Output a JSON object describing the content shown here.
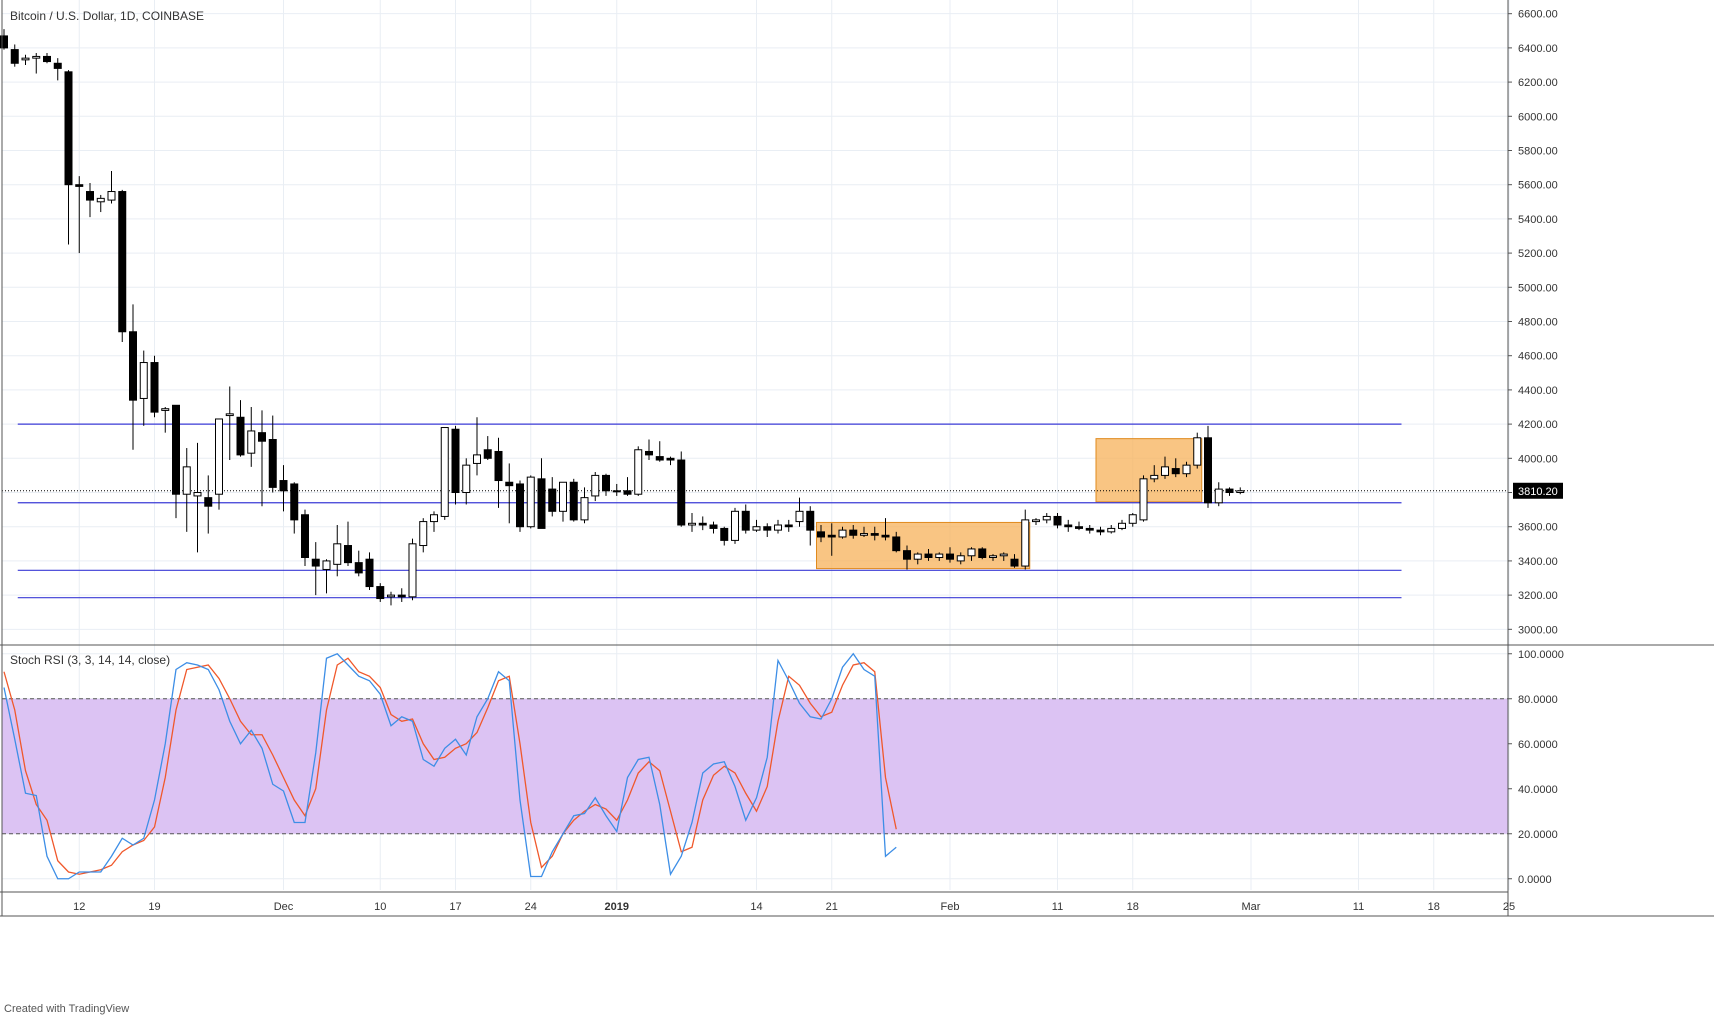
{
  "colors": {
    "grid": "#e9eef4",
    "axis": "#555555",
    "candle_up_fill": "#ffffff",
    "candle_down_fill": "#000000",
    "candle_stroke": "#000000",
    "level_line": "#3b3bd6",
    "range_box_fill": "#f7b15a",
    "range_box_stroke": "#e08a1e",
    "rsi_band": "#dcc3f3",
    "rsi_k": "#3d8ee6",
    "rsi_d": "#f0582b",
    "price_label_bg": "#000000",
    "price_label_text": "#ffffff"
  },
  "chart_data": [
    {
      "type": "candlestick",
      "title": "Bitcoin / U.S. Dollar, 1D, COINBASE",
      "ylim": [
        2920,
        6680
      ],
      "y_ticks": [
        "6600.00",
        "6400.00",
        "6200.00",
        "6000.00",
        "5800.00",
        "5600.00",
        "5400.00",
        "5200.00",
        "5000.00",
        "4800.00",
        "4600.00",
        "4400.00",
        "4200.00",
        "4000.00",
        "3800.00",
        "3600.00",
        "3400.00",
        "3200.00",
        "3000.00"
      ],
      "y_tick_values": [
        6600,
        6400,
        6200,
        6000,
        5800,
        5600,
        5400,
        5200,
        5000,
        4800,
        4600,
        4400,
        4200,
        4000,
        3800,
        3600,
        3400,
        3200,
        3000
      ],
      "x_tick_labels": [
        "12",
        "19",
        "Dec",
        "10",
        "17",
        "24",
        "2019",
        "14",
        "21",
        "Feb",
        "11",
        "18",
        "Mar",
        "11",
        "18",
        "25"
      ],
      "x_tick_days": [
        7,
        14,
        26,
        35,
        42,
        49,
        57,
        70,
        77,
        88,
        98,
        105,
        116,
        126,
        133,
        140
      ],
      "x_tick_bold": [
        false,
        false,
        false,
        false,
        false,
        false,
        true,
        false,
        false,
        false,
        false,
        false,
        false,
        false,
        false,
        false
      ],
      "last_price_label": "3810.20",
      "last_price": 3810.2,
      "horizontal_levels": [
        4200,
        3740,
        3345,
        3185
      ],
      "level_x_range_days": [
        1,
        130
      ],
      "highlight_boxes": [
        {
          "start_day": 76,
          "end_day": 95,
          "low": 3355,
          "high": 3625
        },
        {
          "start_day": 102,
          "end_day": 111,
          "low": 3745,
          "high": 4115
        }
      ],
      "candles": [
        [
          6470,
          6510,
          6390,
          6400
        ],
        [
          6390,
          6420,
          6290,
          6310
        ],
        [
          6330,
          6360,
          6300,
          6340
        ],
        [
          6340,
          6370,
          6250,
          6350
        ],
        [
          6350,
          6370,
          6310,
          6320
        ],
        [
          6310,
          6340,
          6210,
          6280
        ],
        [
          6260,
          6270,
          5250,
          5600
        ],
        [
          5600,
          5650,
          5200,
          5590
        ],
        [
          5560,
          5610,
          5410,
          5510
        ],
        [
          5500,
          5540,
          5440,
          5520
        ],
        [
          5510,
          5680,
          5490,
          5560
        ],
        [
          5560,
          5570,
          4680,
          4740
        ],
        [
          4740,
          4900,
          4050,
          4340
        ],
        [
          4350,
          4630,
          4190,
          4560
        ],
        [
          4560,
          4600,
          4240,
          4270
        ],
        [
          4280,
          4300,
          4150,
          4290
        ],
        [
          4310,
          4310,
          3650,
          3790
        ],
        [
          3790,
          4060,
          3570,
          3950
        ],
        [
          3780,
          4090,
          3450,
          3800
        ],
        [
          3770,
          3900,
          3560,
          3720
        ],
        [
          3790,
          4230,
          3700,
          4230
        ],
        [
          4250,
          4420,
          3990,
          4260
        ],
        [
          4240,
          4340,
          4010,
          4020
        ],
        [
          4030,
          4300,
          3950,
          4160
        ],
        [
          4150,
          4280,
          3720,
          4100
        ],
        [
          4110,
          4250,
          3800,
          3830
        ],
        [
          3870,
          3960,
          3690,
          3810
        ],
        [
          3850,
          3860,
          3560,
          3640
        ],
        [
          3670,
          3700,
          3370,
          3420
        ],
        [
          3410,
          3510,
          3200,
          3370
        ],
        [
          3350,
          3410,
          3210,
          3400
        ],
        [
          3380,
          3610,
          3310,
          3500
        ],
        [
          3490,
          3630,
          3370,
          3390
        ],
        [
          3390,
          3460,
          3310,
          3330
        ],
        [
          3410,
          3450,
          3230,
          3250
        ],
        [
          3250,
          3270,
          3160,
          3180
        ],
        [
          3190,
          3220,
          3140,
          3200
        ],
        [
          3200,
          3240,
          3160,
          3190
        ],
        [
          3190,
          3530,
          3170,
          3500
        ],
        [
          3490,
          3650,
          3450,
          3630
        ],
        [
          3630,
          3690,
          3570,
          3670
        ],
        [
          3660,
          4180,
          3640,
          4180
        ],
        [
          4170,
          4190,
          3730,
          3800
        ],
        [
          3800,
          4000,
          3730,
          3960
        ],
        [
          3970,
          4240,
          3900,
          4020
        ],
        [
          4050,
          4130,
          3990,
          4000
        ],
        [
          4040,
          4120,
          3710,
          3870
        ],
        [
          3860,
          3970,
          3620,
          3840
        ],
        [
          3850,
          3870,
          3570,
          3600
        ],
        [
          3600,
          3900,
          3590,
          3890
        ],
        [
          3880,
          4000,
          3590,
          3590
        ],
        [
          3820,
          3890,
          3660,
          3690
        ],
        [
          3690,
          3860,
          3630,
          3860
        ],
        [
          3860,
          3880,
          3630,
          3640
        ],
        [
          3640,
          3830,
          3620,
          3770
        ],
        [
          3780,
          3920,
          3750,
          3900
        ],
        [
          3900,
          3910,
          3780,
          3810
        ],
        [
          3810,
          3850,
          3780,
          3810
        ],
        [
          3810,
          3890,
          3780,
          3790
        ],
        [
          3790,
          4070,
          3780,
          4050
        ],
        [
          4040,
          4110,
          3990,
          4020
        ],
        [
          4010,
          4100,
          3980,
          3990
        ],
        [
          4000,
          4010,
          3960,
          3990
        ],
        [
          3990,
          4040,
          3600,
          3610
        ],
        [
          3610,
          3680,
          3570,
          3620
        ],
        [
          3620,
          3660,
          3580,
          3610
        ],
        [
          3610,
          3630,
          3560,
          3590
        ],
        [
          3590,
          3600,
          3490,
          3520
        ],
        [
          3520,
          3710,
          3500,
          3690
        ],
        [
          3690,
          3730,
          3560,
          3580
        ],
        [
          3580,
          3640,
          3570,
          3600
        ],
        [
          3600,
          3620,
          3540,
          3580
        ],
        [
          3580,
          3640,
          3560,
          3610
        ],
        [
          3610,
          3640,
          3570,
          3600
        ],
        [
          3630,
          3770,
          3600,
          3690
        ],
        [
          3690,
          3720,
          3490,
          3580
        ],
        [
          3570,
          3610,
          3510,
          3540
        ],
        [
          3550,
          3620,
          3430,
          3540
        ],
        [
          3540,
          3600,
          3530,
          3580
        ],
        [
          3580,
          3610,
          3530,
          3550
        ],
        [
          3550,
          3600,
          3540,
          3560
        ],
        [
          3560,
          3600,
          3520,
          3550
        ],
        [
          3550,
          3650,
          3520,
          3540
        ],
        [
          3540,
          3570,
          3450,
          3460
        ],
        [
          3460,
          3490,
          3350,
          3410
        ],
        [
          3410,
          3450,
          3380,
          3440
        ],
        [
          3440,
          3470,
          3400,
          3420
        ],
        [
          3420,
          3450,
          3400,
          3440
        ],
        [
          3440,
          3480,
          3390,
          3410
        ],
        [
          3400,
          3450,
          3380,
          3430
        ],
        [
          3430,
          3480,
          3400,
          3470
        ],
        [
          3470,
          3480,
          3410,
          3420
        ],
        [
          3420,
          3440,
          3400,
          3430
        ],
        [
          3430,
          3450,
          3400,
          3440
        ],
        [
          3410,
          3440,
          3360,
          3370
        ],
        [
          3370,
          3700,
          3350,
          3640
        ],
        [
          3630,
          3650,
          3610,
          3640
        ],
        [
          3640,
          3680,
          3620,
          3660
        ],
        [
          3660,
          3680,
          3590,
          3610
        ],
        [
          3610,
          3640,
          3570,
          3600
        ],
        [
          3600,
          3630,
          3580,
          3590
        ],
        [
          3590,
          3610,
          3560,
          3580
        ],
        [
          3580,
          3600,
          3550,
          3570
        ],
        [
          3570,
          3610,
          3560,
          3590
        ],
        [
          3590,
          3640,
          3580,
          3620
        ],
        [
          3620,
          3680,
          3600,
          3670
        ],
        [
          3640,
          3900,
          3630,
          3880
        ],
        [
          3880,
          3960,
          3860,
          3900
        ],
        [
          3900,
          4010,
          3880,
          3950
        ],
        [
          3940,
          4000,
          3890,
          3910
        ],
        [
          3910,
          3980,
          3890,
          3960
        ],
        [
          3960,
          4150,
          3940,
          4120
        ],
        [
          4120,
          4190,
          3710,
          3740
        ],
        [
          3740,
          3860,
          3720,
          3820
        ],
        [
          3820,
          3830,
          3780,
          3800
        ],
        [
          3800,
          3830,
          3790,
          3810
        ]
      ]
    },
    {
      "type": "line",
      "title": "Stoch RSI (3, 3, 14, 14, close)",
      "ylim": [
        -5,
        103
      ],
      "y_ticks": [
        "100.0000",
        "80.0000",
        "60.0000",
        "40.0000",
        "20.0000",
        "0.0000"
      ],
      "y_tick_values": [
        100,
        80,
        60,
        40,
        20,
        0
      ],
      "band": [
        20,
        80
      ],
      "series": [
        {
          "values": [
            85,
            62,
            38,
            37,
            10,
            0,
            0,
            3,
            3,
            3,
            10,
            18,
            15,
            18,
            35,
            60,
            93,
            96,
            95,
            93,
            84,
            70,
            60,
            66,
            58,
            42,
            39,
            25,
            25,
            56,
            98,
            100,
            95,
            90,
            88,
            82,
            68,
            72,
            70,
            53,
            50,
            58,
            62,
            55,
            72,
            80,
            92,
            88,
            35,
            1,
            1,
            12,
            20,
            28,
            29,
            36,
            28,
            21,
            45,
            53,
            54,
            33,
            2,
            10,
            25,
            47,
            51,
            52,
            41,
            26,
            36,
            54,
            97,
            88,
            78,
            72,
            71,
            80,
            94,
            100,
            93,
            90,
            10,
            14
          ]
        },
        {
          "values": [
            92,
            75,
            48,
            33,
            26,
            8,
            3,
            2,
            3,
            4,
            6,
            12,
            15,
            17,
            23,
            45,
            75,
            93,
            94,
            95,
            89,
            80,
            70,
            64,
            64,
            55,
            45,
            35,
            28,
            40,
            75,
            95,
            98,
            92,
            90,
            85,
            73,
            70,
            71,
            60,
            53,
            54,
            58,
            60,
            65,
            76,
            88,
            90,
            60,
            25,
            5,
            10,
            20,
            26,
            30,
            33,
            31,
            26,
            35,
            47,
            52,
            48,
            30,
            12,
            14,
            35,
            46,
            50,
            47,
            38,
            30,
            41,
            70,
            90,
            86,
            78,
            72,
            74,
            86,
            95,
            96,
            92,
            45,
            22
          ]
        }
      ]
    }
  ],
  "footer_text": "Created with TradingView"
}
